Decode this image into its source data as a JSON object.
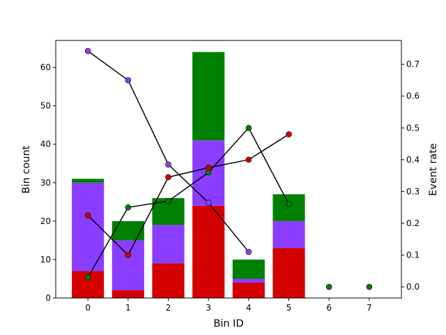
{
  "chart_data": {
    "type": "bar",
    "xlabel": "Bin ID",
    "ylabel": "Bin count",
    "y2label": "Event rate",
    "categories": [
      "0",
      "1",
      "2",
      "3",
      "4",
      "5",
      "6",
      "7"
    ],
    "xlim": [
      -0.8,
      7.8
    ],
    "ylim": [
      0,
      67
    ],
    "y2lim": [
      -0.035,
      0.775
    ],
    "yticks": [
      0,
      10,
      20,
      30,
      40,
      50,
      60
    ],
    "y2ticks": [
      "0.0",
      "0.1",
      "0.2",
      "0.3",
      "0.4",
      "0.5",
      "0.6",
      "0.7"
    ],
    "stack_series": [
      {
        "color": "#d40000",
        "values": [
          7,
          2,
          9,
          24,
          4,
          13,
          0,
          0
        ]
      },
      {
        "color": "#8b3dff",
        "values": [
          23,
          13,
          10,
          17,
          1,
          7,
          0,
          0
        ]
      },
      {
        "color": "#008000",
        "values": [
          1,
          5,
          7,
          23,
          5,
          7,
          0,
          0
        ]
      }
    ],
    "line_series": [
      {
        "color": "#8b3dff",
        "x": [
          0,
          1,
          2,
          3,
          4
        ],
        "values": [
          0.742,
          0.65,
          0.385,
          0.265,
          0.11
        ]
      },
      {
        "color": "#d40000",
        "x": [
          0,
          1,
          2,
          3,
          4,
          5
        ],
        "values": [
          0.225,
          0.1,
          0.345,
          0.375,
          0.4,
          0.48
        ]
      },
      {
        "color": "#008000",
        "x": [
          0,
          1,
          2,
          3,
          4,
          5,
          6,
          7
        ],
        "values": [
          0.03,
          0.25,
          0.27,
          0.36,
          0.5,
          0.26,
          0.0,
          0.0
        ],
        "connect_upto": 5
      }
    ],
    "grid": false
  }
}
